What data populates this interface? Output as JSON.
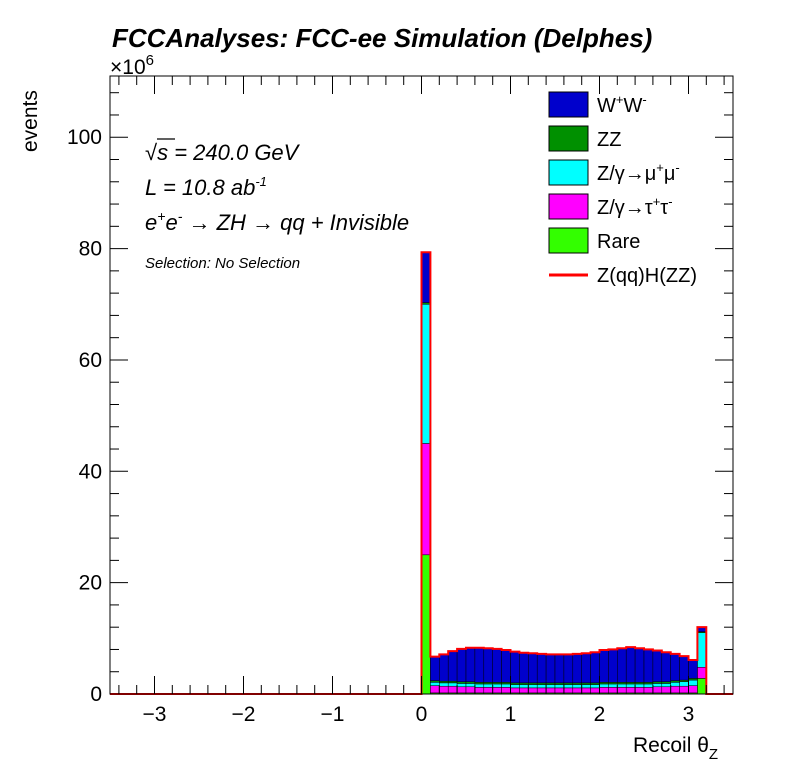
{
  "chart_data": {
    "type": "bar",
    "stacked": true,
    "title": "FCCAnalyses: FCC-ee Simulation (Delphes)",
    "xlabel": "Recoil θ",
    "xlabel_sub": "Z",
    "ylabel": "events",
    "y_multiplier": "×10",
    "y_multiplier_exp": "6",
    "xlim": [
      -3.5,
      3.5
    ],
    "ylim": [
      0,
      111
    ],
    "x_ticks": [
      "−3",
      "−2",
      "−1",
      "0",
      "1",
      "2",
      "3"
    ],
    "y_ticks": [
      "0",
      "20",
      "40",
      "60",
      "80",
      "100"
    ],
    "annotations": {
      "sqrt_symbol": "√",
      "sqrt_s": "s",
      "energy": " = 240.0 GeV",
      "lumi": "L = 10.8 ab",
      "lumi_exp": "-1",
      "process_e1": "e",
      "process_sup1": "+",
      "process_e2": "e",
      "process_sup2": "-",
      "process_rest": " → ZH → qq + Invisible",
      "selection": "Selection: No Selection"
    },
    "bin_edges": [
      0.0,
      0.1,
      0.2,
      0.3,
      0.4,
      0.5,
      0.6,
      0.7,
      0.8,
      0.9,
      1.0,
      1.1,
      1.2,
      1.3,
      1.4,
      1.5,
      1.6,
      1.7,
      1.8,
      1.9,
      2.0,
      2.1,
      2.2,
      2.3,
      2.4,
      2.5,
      2.6,
      2.7,
      2.8,
      2.9,
      3.0,
      3.1,
      3.2
    ],
    "series": [
      {
        "name": "Rare",
        "color": "#33ff00",
        "values": [
          25.0,
          0.2,
          0.2,
          0.2,
          0.2,
          0.2,
          0.2,
          0.2,
          0.2,
          0.2,
          0.2,
          0.2,
          0.2,
          0.2,
          0.2,
          0.2,
          0.2,
          0.2,
          0.2,
          0.2,
          0.2,
          0.2,
          0.2,
          0.2,
          0.2,
          0.2,
          0.2,
          0.2,
          0.2,
          0.2,
          0.2,
          2.8
        ]
      },
      {
        "name": "Z/γ→τ⁺τ⁻",
        "color": "#ff00ff",
        "values": [
          20.0,
          1.3,
          1.2,
          1.2,
          1.1,
          1.1,
          1.0,
          1.0,
          1.0,
          1.0,
          0.9,
          0.9,
          0.9,
          0.9,
          0.9,
          0.9,
          0.9,
          0.9,
          0.9,
          0.9,
          1.0,
          1.0,
          1.0,
          1.0,
          1.0,
          1.0,
          1.1,
          1.1,
          1.2,
          1.2,
          1.3,
          2.0
        ]
      },
      {
        "name": "Z/γ→μ⁺μ⁻",
        "color": "#00ffff",
        "values": [
          25.0,
          0.6,
          0.6,
          0.6,
          0.6,
          0.6,
          0.6,
          0.6,
          0.6,
          0.6,
          0.6,
          0.6,
          0.6,
          0.6,
          0.6,
          0.6,
          0.6,
          0.6,
          0.6,
          0.6,
          0.6,
          0.6,
          0.6,
          0.6,
          0.6,
          0.6,
          0.6,
          0.6,
          0.7,
          0.8,
          1.0,
          6.2
        ]
      },
      {
        "name": "ZZ",
        "color": "#009000",
        "values": [
          0.3,
          0.3,
          0.3,
          0.3,
          0.3,
          0.3,
          0.3,
          0.3,
          0.3,
          0.3,
          0.3,
          0.3,
          0.3,
          0.3,
          0.3,
          0.3,
          0.3,
          0.3,
          0.3,
          0.3,
          0.3,
          0.3,
          0.3,
          0.3,
          0.3,
          0.3,
          0.3,
          0.3,
          0.3,
          0.3,
          0.3,
          0.2
        ]
      },
      {
        "name": "W⁺W⁻",
        "color": "#0000cc",
        "values": [
          9.0,
          4.3,
          4.8,
          5.4,
          5.9,
          6.1,
          6.2,
          6.1,
          6.0,
          5.8,
          5.6,
          5.4,
          5.3,
          5.2,
          5.1,
          5.1,
          5.1,
          5.2,
          5.3,
          5.5,
          5.8,
          5.9,
          6.1,
          6.3,
          6.1,
          5.9,
          5.6,
          5.3,
          4.8,
          4.3,
          3.3,
          0.8
        ]
      }
    ],
    "signal": {
      "name": "Z(qq)H(ZZ)",
      "color": "#ff0000",
      "values": [
        0.05,
        0.01,
        0.01,
        0.01,
        0.01,
        0.01,
        0.01,
        0.01,
        0.01,
        0.01,
        0.01,
        0.01,
        0.01,
        0.01,
        0.01,
        0.01,
        0.01,
        0.01,
        0.01,
        0.01,
        0.01,
        0.01,
        0.01,
        0.01,
        0.01,
        0.01,
        0.01,
        0.01,
        0.01,
        0.01,
        0.01,
        0.01
      ]
    },
    "legend": {
      "placement": "top-right",
      "entries": [
        {
          "key": "ww",
          "type": "box",
          "color": "#0000cc",
          "base": "W",
          "s1": "+",
          "mid": "W",
          "s2": "-"
        },
        {
          "key": "zz",
          "type": "box",
          "color": "#009000",
          "base": "ZZ"
        },
        {
          "key": "zmumu",
          "type": "box",
          "color": "#00ffff",
          "base": "Z/γ→μ",
          "s1": "+",
          "mid": "μ",
          "s2": "-"
        },
        {
          "key": "ztautau",
          "type": "box",
          "color": "#ff00ff",
          "base": "Z/γ→τ",
          "s1": "+",
          "mid": "τ",
          "s2": "-"
        },
        {
          "key": "rare",
          "type": "box",
          "color": "#33ff00",
          "base": "Rare"
        },
        {
          "key": "signal",
          "type": "line",
          "color": "#ff0000",
          "base": "Z(qq)H(ZZ)"
        }
      ]
    }
  }
}
